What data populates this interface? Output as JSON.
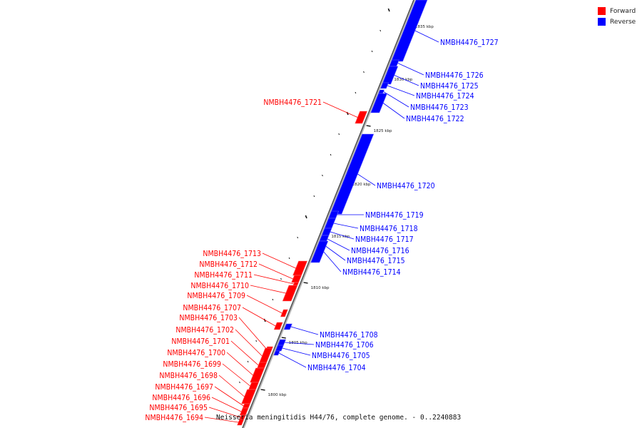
{
  "legend": {
    "forward_label": "Forward",
    "reverse_label": "Reverse",
    "forward_color": "#ff0000",
    "reverse_color": "#0000ff"
  },
  "caption": "Neisseria meningitidis H44/76, complete genome. - 0..2240883",
  "tick_labels": [
    "1835 kbp",
    "1830 kbp",
    "1825 kbp",
    "1820 kbp",
    "1815 kbp",
    "1810 kbp",
    "1805 kbp",
    "1800 kbp"
  ],
  "genes": [
    {
      "name": "NMBH4476_1727",
      "strand": "reverse"
    },
    {
      "name": "NMBH4476_1726",
      "strand": "reverse"
    },
    {
      "name": "NMBH4476_1725",
      "strand": "reverse"
    },
    {
      "name": "NMBH4476_1724",
      "strand": "reverse"
    },
    {
      "name": "NMBH4476_1723",
      "strand": "reverse"
    },
    {
      "name": "NMBH4476_1722",
      "strand": "reverse"
    },
    {
      "name": "NMBH4476_1721",
      "strand": "forward"
    },
    {
      "name": "NMBH4476_1720",
      "strand": "reverse"
    },
    {
      "name": "NMBH4476_1719",
      "strand": "reverse"
    },
    {
      "name": "NMBH4476_1718",
      "strand": "reverse"
    },
    {
      "name": "NMBH4476_1717",
      "strand": "reverse"
    },
    {
      "name": "NMBH4476_1716",
      "strand": "reverse"
    },
    {
      "name": "NMBH4476_1715",
      "strand": "reverse"
    },
    {
      "name": "NMBH4476_1714",
      "strand": "reverse"
    },
    {
      "name": "NMBH4476_1713",
      "strand": "forward"
    },
    {
      "name": "NMBH4476_1712",
      "strand": "forward"
    },
    {
      "name": "NMBH4476_1711",
      "strand": "forward"
    },
    {
      "name": "NMBH4476_1710",
      "strand": "forward"
    },
    {
      "name": "NMBH4476_1709",
      "strand": "forward"
    },
    {
      "name": "NMBH4476_1708",
      "strand": "reverse"
    },
    {
      "name": "NMBH4476_1707",
      "strand": "forward"
    },
    {
      "name": "NMBH4476_1706",
      "strand": "reverse"
    },
    {
      "name": "NMBH4476_1705",
      "strand": "reverse"
    },
    {
      "name": "NMBH4476_1704",
      "strand": "reverse"
    },
    {
      "name": "NMBH4476_1703",
      "strand": "forward"
    },
    {
      "name": "NMBH4476_1702",
      "strand": "forward"
    },
    {
      "name": "NMBH4476_1701",
      "strand": "forward"
    },
    {
      "name": "NMBH4476_1700",
      "strand": "forward"
    },
    {
      "name": "NMBH4476_1699",
      "strand": "forward"
    },
    {
      "name": "NMBH4476_1698",
      "strand": "forward"
    },
    {
      "name": "NMBH4476_1697",
      "strand": "forward"
    },
    {
      "name": "NMBH4476_1696",
      "strand": "forward"
    },
    {
      "name": "NMBH4476_1695",
      "strand": "forward"
    },
    {
      "name": "NMBH4476_1694",
      "strand": "forward"
    }
  ]
}
